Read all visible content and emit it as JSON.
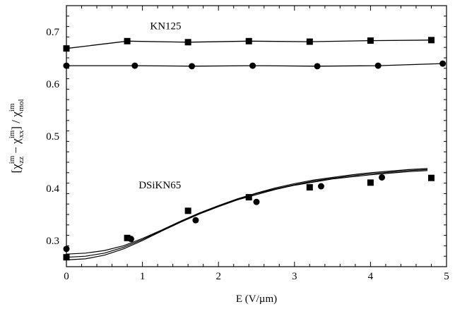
{
  "chart_data": {
    "type": "scatter",
    "xlabel": "E  (V/µm)",
    "ylabel": {
      "open": "[",
      "chi1": "χ",
      "sup1": "im",
      "sub1": "zz",
      "minus": " − ",
      "chi2": "χ",
      "sup2": "im",
      "sub2": "xx",
      "close": "]",
      "slash": " / ",
      "chi3": "χ",
      "sup3": "im",
      "sub3": "mol"
    },
    "xlim": [
      0,
      5
    ],
    "ylim": [
      0.25,
      0.75
    ],
    "x_ticks": [
      0,
      1,
      2,
      3,
      4,
      5
    ],
    "y_ticks": [
      0.3,
      0.4,
      0.5,
      0.6,
      0.7
    ],
    "x_tick_labels": [
      "0",
      "1",
      "2",
      "3",
      "4",
      "5"
    ],
    "y_tick_labels": [
      "0.3",
      "0.4",
      "0.5",
      "0.6",
      "0.7"
    ],
    "grid": false,
    "annotations": [
      {
        "text": "KN125",
        "x": 1.1,
        "y": 0.705
      },
      {
        "text": "DSiKN65",
        "x": 0.95,
        "y": 0.4
      }
    ],
    "series": [
      {
        "marker": "square",
        "connected": true,
        "x": [
          0,
          0.8,
          1.6,
          2.4,
          3.2,
          4.0,
          4.8
        ],
        "y": [
          0.668,
          0.682,
          0.68,
          0.682,
          0.681,
          0.683,
          0.684
        ]
      },
      {
        "marker": "circle",
        "connected": true,
        "x": [
          0,
          0.9,
          1.65,
          2.45,
          3.3,
          4.1,
          4.95
        ],
        "y": [
          0.635,
          0.635,
          0.634,
          0.635,
          0.634,
          0.635,
          0.639
        ]
      },
      {
        "marker": "square",
        "connected": false,
        "x": [
          0,
          0.8,
          1.6,
          2.4,
          3.2,
          4.0,
          4.8
        ],
        "y": [
          0.268,
          0.305,
          0.357,
          0.383,
          0.402,
          0.411,
          0.42
        ]
      },
      {
        "marker": "circle",
        "connected": false,
        "x": [
          0,
          0.85,
          1.7,
          2.5,
          3.35,
          4.15
        ],
        "y": [
          0.284,
          0.303,
          0.339,
          0.374,
          0.404,
          0.421
        ]
      }
    ],
    "fit_curves": [
      {
        "x": [
          0,
          0.25,
          0.5,
          0.75,
          1,
          1.25,
          1.5,
          1.75,
          2,
          2.25,
          2.5,
          2.75,
          3,
          3.25,
          3.5,
          3.75,
          4,
          4.25,
          4.5,
          4.75
        ],
        "y": [
          0.274,
          0.276,
          0.281,
          0.29,
          0.304,
          0.32,
          0.337,
          0.353,
          0.367,
          0.38,
          0.391,
          0.401,
          0.409,
          0.416,
          0.421,
          0.426,
          0.43,
          0.433,
          0.436,
          0.438
        ]
      },
      {
        "x": [
          0,
          0.25,
          0.5,
          0.75,
          1,
          1.25,
          1.5,
          1.75,
          2,
          2.25,
          2.5,
          2.75,
          3,
          3.25,
          3.5,
          3.75,
          4,
          4.25,
          4.5,
          4.75
        ],
        "y": [
          0.268,
          0.27,
          0.276,
          0.287,
          0.302,
          0.319,
          0.336,
          0.352,
          0.366,
          0.379,
          0.39,
          0.399,
          0.407,
          0.414,
          0.419,
          0.424,
          0.428,
          0.431,
          0.434,
          0.436
        ]
      },
      {
        "x": [
          0,
          0.25,
          0.5,
          0.75,
          1,
          1.25,
          1.5,
          1.75,
          2,
          2.25,
          2.5,
          2.75,
          3,
          3.25,
          3.5,
          3.75,
          4,
          4.25,
          4.5,
          4.75
        ],
        "y": [
          0.263,
          0.265,
          0.272,
          0.284,
          0.3,
          0.318,
          0.335,
          0.351,
          0.365,
          0.378,
          0.388,
          0.398,
          0.406,
          0.412,
          0.418,
          0.422,
          0.426,
          0.429,
          0.432,
          0.434
        ]
      }
    ]
  }
}
